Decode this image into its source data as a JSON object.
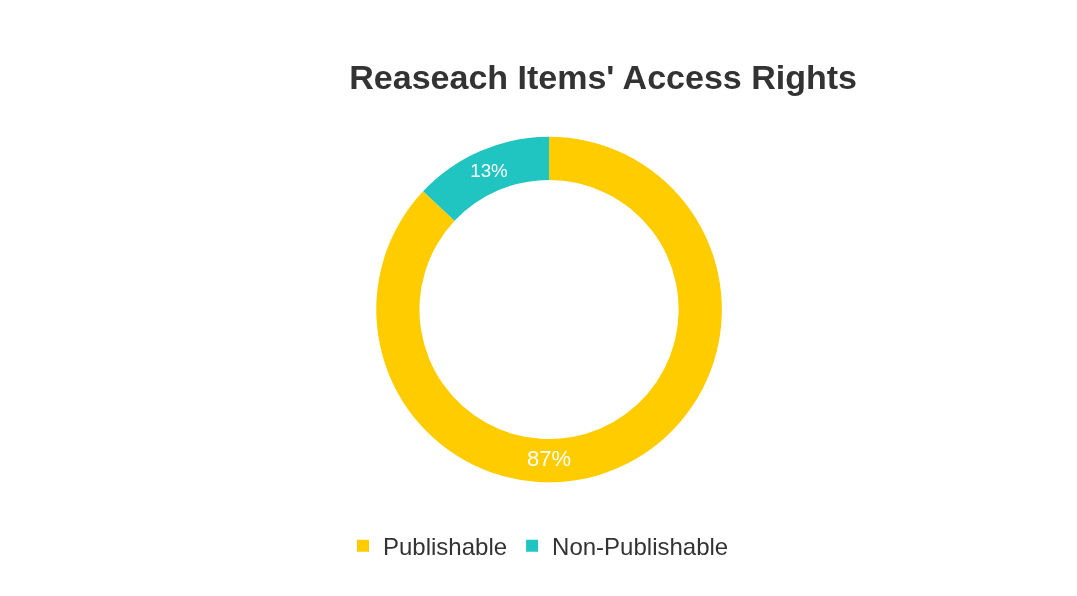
{
  "chart_data": {
    "type": "donut",
    "title": "Reaseach Items' Access Rights",
    "categories": [
      "Publishable",
      "Non-Publishable"
    ],
    "values": [
      87,
      13
    ],
    "colors": [
      "#ffcc00",
      "#20c4c0"
    ],
    "value_labels": [
      "87%",
      "13%"
    ],
    "legend": "bottom"
  }
}
